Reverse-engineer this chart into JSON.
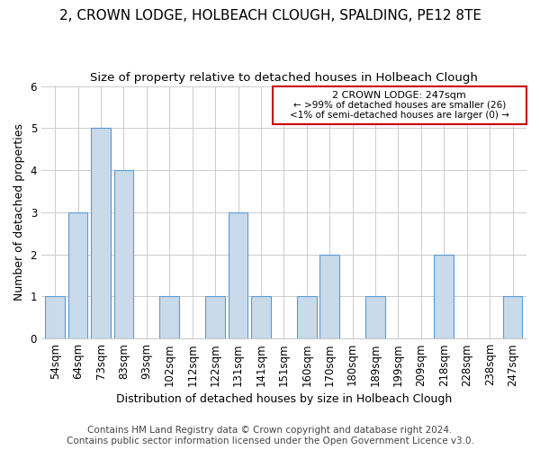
{
  "title1": "2, CROWN LODGE, HOLBEACH CLOUGH, SPALDING, PE12 8TE",
  "title2": "Size of property relative to detached houses in Holbeach Clough",
  "xlabel": "Distribution of detached houses by size in Holbeach Clough",
  "ylabel": "Number of detached properties",
  "categories": [
    "54sqm",
    "64sqm",
    "73sqm",
    "83sqm",
    "93sqm",
    "102sqm",
    "112sqm",
    "122sqm",
    "131sqm",
    "141sqm",
    "151sqm",
    "160sqm",
    "170sqm",
    "180sqm",
    "189sqm",
    "199sqm",
    "209sqm",
    "218sqm",
    "228sqm",
    "238sqm",
    "247sqm"
  ],
  "values": [
    1,
    3,
    5,
    4,
    0,
    1,
    0,
    1,
    3,
    1,
    0,
    1,
    2,
    0,
    1,
    0,
    0,
    2,
    0,
    0,
    1
  ],
  "bar_color": "#c9daea",
  "bar_edge_color": "#5b9bd5",
  "box_text_line1": "2 CROWN LODGE: 247sqm",
  "box_text_line2": "← >99% of detached houses are smaller (26)",
  "box_text_line3": "<1% of semi-detached houses are larger (0) →",
  "box_color": "#cc0000",
  "footer1": "Contains HM Land Registry data © Crown copyright and database right 2024.",
  "footer2": "Contains public sector information licensed under the Open Government Licence v3.0.",
  "ylim": [
    0,
    6
  ],
  "yticks": [
    0,
    1,
    2,
    3,
    4,
    5,
    6
  ],
  "title1_fontsize": 11,
  "title2_fontsize": 9.5,
  "xlabel_fontsize": 9,
  "ylabel_fontsize": 9,
  "tick_fontsize": 8.5,
  "footer_fontsize": 7.5,
  "background_color": "#ffffff",
  "grid_color": "#cccccc"
}
